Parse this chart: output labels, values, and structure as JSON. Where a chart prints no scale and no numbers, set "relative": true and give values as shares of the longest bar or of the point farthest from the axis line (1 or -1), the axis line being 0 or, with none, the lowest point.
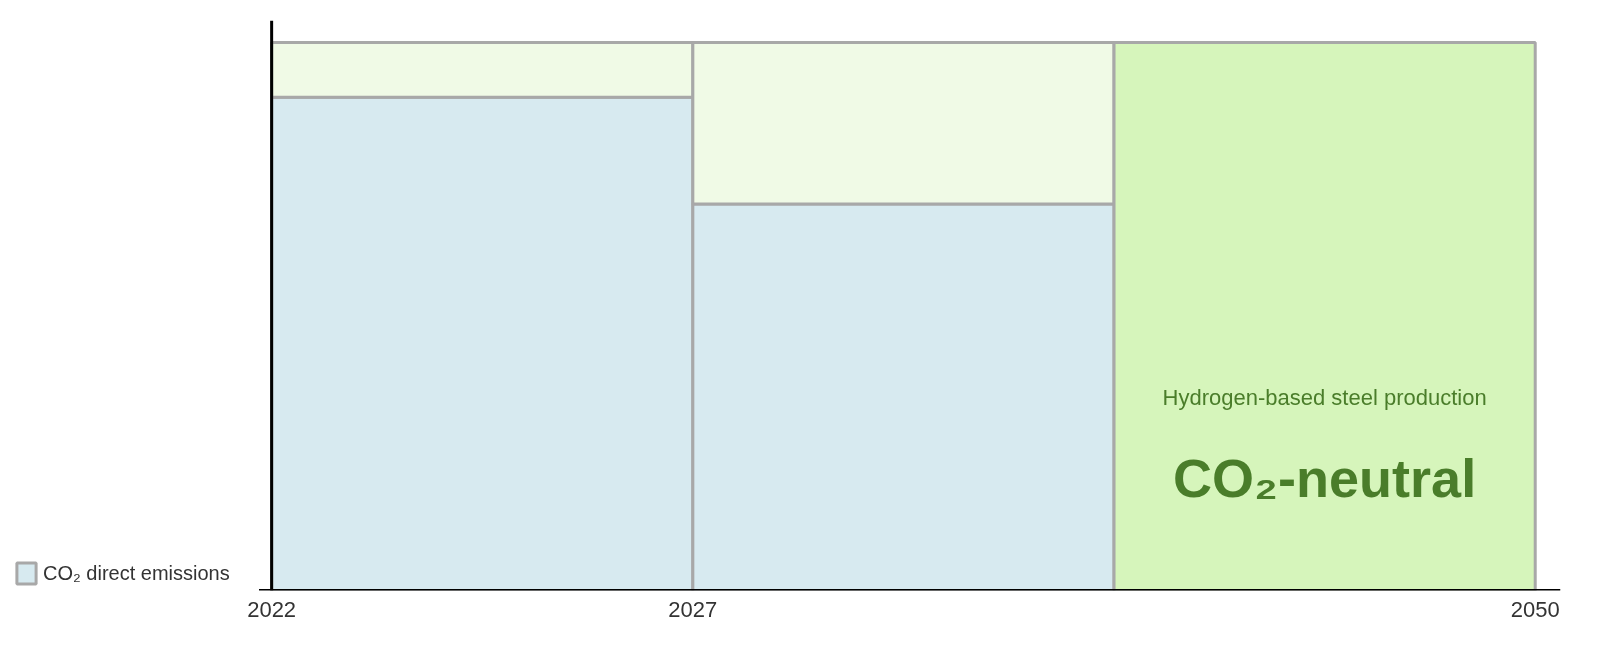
{
  "chart_data": {
    "type": "bar",
    "stacked": true,
    "relative": true,
    "categories": [
      "2022",
      "2027",
      null
    ],
    "series": [
      {
        "name": "CO₂ direct emissions",
        "color": "#d7eaf0",
        "values": [
          0.9,
          0.705,
          null
        ]
      },
      {
        "colors": [
          "#f0fae6",
          "#f0fae6",
          "#d6f5bb"
        ],
        "values": [
          0.1,
          0.295,
          1.0
        ]
      }
    ],
    "legend": "left",
    "annotations": [
      "2050",
      "Hydrogen-based steel production",
      "CO₂-neutral"
    ]
  }
}
